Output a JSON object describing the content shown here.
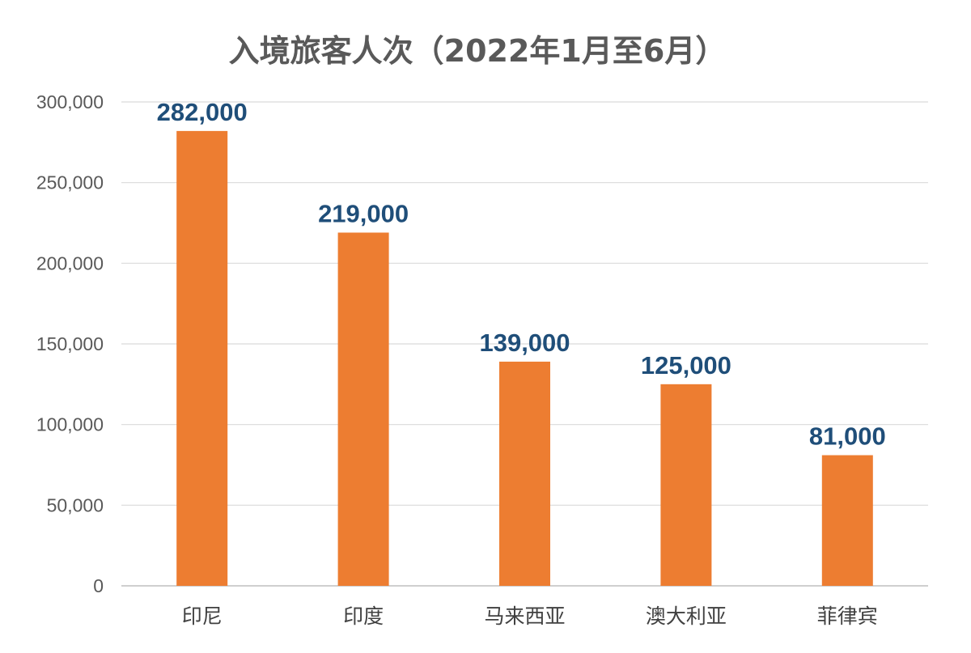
{
  "chart_data": {
    "type": "bar",
    "title": "入境旅客人次（2022年1月至6月）",
    "xlabel": "",
    "ylabel": "",
    "categories": [
      "印尼",
      "印度",
      "马来西亚",
      "澳大利亚",
      "菲律宾"
    ],
    "values": [
      282000,
      219000,
      139000,
      125000,
      81000
    ],
    "data_labels": [
      "282,000",
      "219,000",
      "139,000",
      "125,000",
      "81,000"
    ],
    "ylim": [
      0,
      300000
    ],
    "yticks": [
      0,
      50000,
      100000,
      150000,
      200000,
      250000,
      300000
    ],
    "ytick_labels": [
      "0",
      "50,000",
      "100,000",
      "150,000",
      "200,000",
      "250,000",
      "300,000"
    ],
    "grid": true,
    "legend": "none",
    "colors": {
      "bar": "#ed7d31",
      "data_label": "#1f4e79",
      "title": "#595959"
    }
  }
}
